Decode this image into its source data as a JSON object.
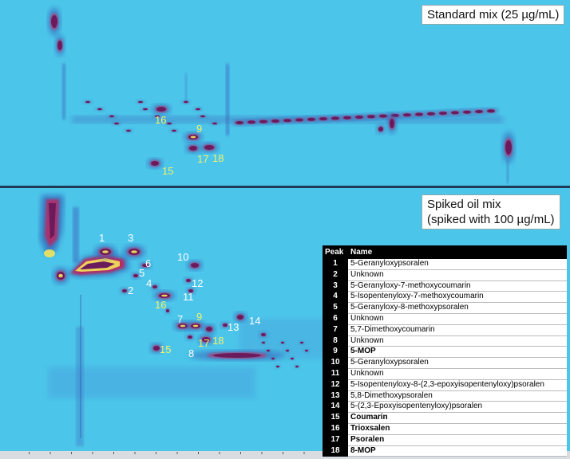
{
  "chart_data": [
    {
      "type": "heatmap",
      "title": "Standard mix (25 µg/mL)",
      "peak_labels": [
        {
          "peak": "9",
          "present": true
        },
        {
          "peak": "15",
          "present": true
        },
        {
          "peak": "16",
          "present": true
        },
        {
          "peak": "17",
          "present": true
        },
        {
          "peak": "18",
          "present": true
        }
      ]
    },
    {
      "type": "heatmap",
      "title_lines": [
        "Spiked oil mix",
        "(spiked with 100 µg/mL)"
      ],
      "peak_labels": [
        {
          "peak": "1"
        },
        {
          "peak": "2"
        },
        {
          "peak": "3"
        },
        {
          "peak": "4"
        },
        {
          "peak": "5"
        },
        {
          "peak": "6"
        },
        {
          "peak": "7"
        },
        {
          "peak": "8"
        },
        {
          "peak": "9"
        },
        {
          "peak": "10"
        },
        {
          "peak": "11"
        },
        {
          "peak": "12"
        },
        {
          "peak": "13"
        },
        {
          "peak": "14"
        },
        {
          "peak": "15"
        },
        {
          "peak": "16"
        },
        {
          "peak": "17"
        },
        {
          "peak": "18"
        }
      ]
    }
  ],
  "legend": {
    "header_peak": "Peak",
    "header_name": "Name",
    "rows": [
      {
        "peak": "1",
        "name": "5-Geranyloxypsoralen",
        "bold": false
      },
      {
        "peak": "2",
        "name": "Unknown",
        "bold": false
      },
      {
        "peak": "3",
        "name": "5-Geranyloxy-7-methoxycoumarin",
        "bold": false
      },
      {
        "peak": "4",
        "name": "5-Isopentenyloxy-7-methoxycoumarin",
        "bold": false
      },
      {
        "peak": "5",
        "name": "5-Geranyloxy-8-methoxypsoralen",
        "bold": false
      },
      {
        "peak": "6",
        "name": "Unknown",
        "bold": false
      },
      {
        "peak": "7",
        "name": "5,7-Dimethoxycoumarin",
        "bold": false
      },
      {
        "peak": "8",
        "name": "Unknown",
        "bold": false
      },
      {
        "peak": "9",
        "name": "5-MOP",
        "bold": true
      },
      {
        "peak": "10",
        "name": "5-Geranyloxypsoralen",
        "bold": false
      },
      {
        "peak": "11",
        "name": "Unknown",
        "bold": false
      },
      {
        "peak": "12",
        "name": "5-Isopentenyloxy-8-(2,3-epoxyisopentenyloxy)psoralen",
        "bold": false
      },
      {
        "peak": "13",
        "name": "5,8-Dimethoxypsoralen",
        "bold": false
      },
      {
        "peak": "14",
        "name": "5-(2,3-Epoxyisopentenyloxy)psoralen",
        "bold": false
      },
      {
        "peak": "15",
        "name": "Coumarin",
        "bold": true
      },
      {
        "peak": "16",
        "name": "Trioxsalen",
        "bold": true
      },
      {
        "peak": "17",
        "name": "Psoralen",
        "bold": true
      },
      {
        "peak": "18",
        "name": "8-MOP",
        "bold": true
      }
    ]
  },
  "colors": {
    "background": "#4cc5ea",
    "highlight": "#f4f26a",
    "label": "#ffffff",
    "peak_core": "#6b1a5c",
    "peak_halo": "#2e5fb5"
  }
}
